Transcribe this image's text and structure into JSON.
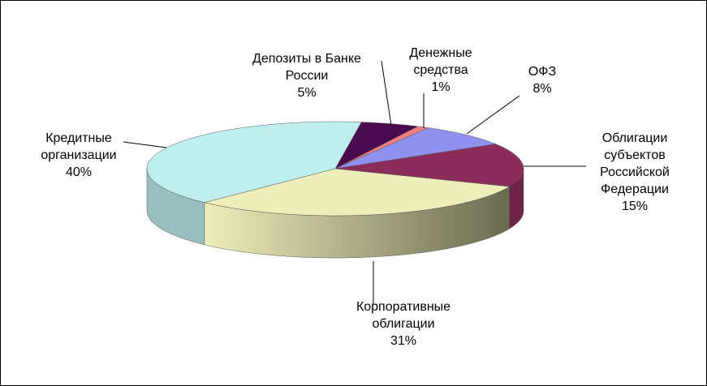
{
  "chart_data": {
    "type": "pie3d",
    "categories": [
      "Депозиты в Банке России",
      "Денежные средства",
      "ОФЗ",
      "Облигации субъектов Российской Федерации",
      "Корпоративные облигации",
      "Кредитные организации"
    ],
    "values": [
      5,
      1,
      8,
      15,
      31,
      40
    ],
    "value_labels": [
      "5%",
      "1%",
      "8%",
      "15%",
      "31%",
      "40%"
    ],
    "colors": [
      "#4b0b4f",
      "#f08080",
      "#9090f0",
      "#8b2c5a",
      "#eeeebb",
      "#bfeeee"
    ]
  }
}
